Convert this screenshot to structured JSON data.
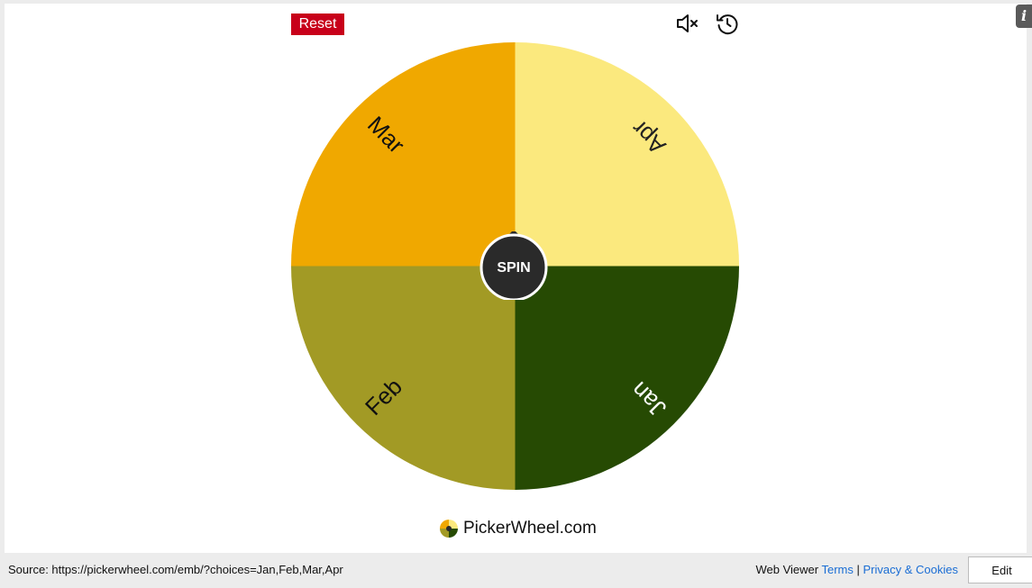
{
  "toolbar": {
    "reset_label": "Reset",
    "mute_icon": "speaker-muted-icon",
    "history_icon": "history-icon",
    "info_label": "i"
  },
  "wheel": {
    "segments": [
      {
        "label": "Apr",
        "color": "#fbe97e",
        "text_color": "#222222"
      },
      {
        "label": "Jan",
        "color": "#264a03",
        "text_color": "#ffffff"
      },
      {
        "label": "Feb",
        "color": "#a29a25",
        "text_color": "#111111"
      },
      {
        "label": "Mar",
        "color": "#f0a800",
        "text_color": "#111111"
      }
    ],
    "spin_label": "SPIN",
    "hub_color": "#2a2a2a"
  },
  "brand": {
    "name": "PickerWheel.com",
    "logo_icon": "pickerwheel-logo-icon"
  },
  "footer": {
    "source_text": "Source: https://pickerwheel.com/emb/?choices=Jan,Feb,Mar,Apr",
    "web_viewer_label": "Web Viewer",
    "terms_label": "Terms",
    "separator": "|",
    "privacy_label": "Privacy & Cookies",
    "edit_label": "Edit"
  }
}
